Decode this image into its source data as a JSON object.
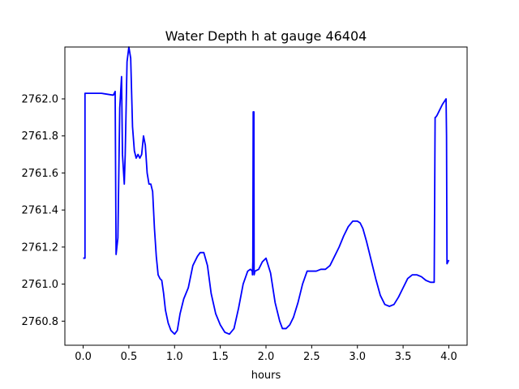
{
  "chart_data": {
    "type": "line",
    "title": "Water Depth h at gauge 46404",
    "xlabel": "hours",
    "ylabel": "",
    "xlim": [
      -0.2,
      4.2
    ],
    "ylim": [
      2760.67,
      2762.28
    ],
    "xticks": [
      0.0,
      0.5,
      1.0,
      1.5,
      2.0,
      2.5,
      3.0,
      3.5,
      4.0
    ],
    "xtick_labels": [
      "0.0",
      "0.5",
      "1.0",
      "1.5",
      "2.0",
      "2.5",
      "3.0",
      "3.5",
      "4.0"
    ],
    "yticks": [
      2760.8,
      2761.0,
      2761.2,
      2761.4,
      2761.6,
      2761.8,
      2762.0
    ],
    "ytick_labels": [
      "2760.8",
      "2761.0",
      "2761.2",
      "2761.4",
      "2761.6",
      "2761.8",
      "2762.0"
    ],
    "grid": false,
    "legend": "none",
    "series": [
      {
        "color": "#0000ff",
        "x": [
          0.0,
          0.02,
          0.02,
          0.2,
          0.33,
          0.35,
          0.36,
          0.38,
          0.4,
          0.42,
          0.43,
          0.45,
          0.46,
          0.48,
          0.5,
          0.52,
          0.54,
          0.56,
          0.58,
          0.6,
          0.62,
          0.64,
          0.66,
          0.68,
          0.7,
          0.72,
          0.74,
          0.76,
          0.78,
          0.8,
          0.82,
          0.84,
          0.86,
          0.88,
          0.9,
          0.93,
          0.96,
          1.0,
          1.03,
          1.06,
          1.1,
          1.15,
          1.2,
          1.25,
          1.28,
          1.32,
          1.36,
          1.4,
          1.45,
          1.5,
          1.55,
          1.6,
          1.65,
          1.7,
          1.75,
          1.8,
          1.83,
          1.85,
          1.852,
          1.856,
          1.86,
          1.864,
          1.868,
          1.87,
          1.88,
          1.92,
          1.96,
          2.0,
          2.05,
          2.1,
          2.15,
          2.18,
          2.22,
          2.26,
          2.3,
          2.35,
          2.4,
          2.45,
          2.5,
          2.55,
          2.6,
          2.65,
          2.7,
          2.75,
          2.8,
          2.85,
          2.9,
          2.95,
          3.0,
          3.03,
          3.06,
          3.1,
          3.15,
          3.2,
          3.25,
          3.3,
          3.35,
          3.4,
          3.45,
          3.5,
          3.55,
          3.6,
          3.65,
          3.7,
          3.75,
          3.8,
          3.84,
          3.85,
          3.855,
          3.87,
          3.9,
          3.93,
          3.97,
          3.975,
          3.98,
          4.0
        ],
        "y": [
          2761.14,
          2761.14,
          2762.03,
          2762.03,
          2762.02,
          2762.04,
          2761.16,
          2761.25,
          2761.95,
          2762.12,
          2761.7,
          2761.54,
          2761.7,
          2762.2,
          2762.28,
          2762.22,
          2761.85,
          2761.72,
          2761.68,
          2761.7,
          2761.68,
          2761.7,
          2761.8,
          2761.75,
          2761.6,
          2761.54,
          2761.54,
          2761.5,
          2761.3,
          2761.15,
          2761.05,
          2761.03,
          2761.02,
          2760.95,
          2760.86,
          2760.79,
          2760.75,
          2760.73,
          2760.75,
          2760.84,
          2760.92,
          2760.98,
          2761.1,
          2761.15,
          2761.17,
          2761.17,
          2761.1,
          2760.95,
          2760.84,
          2760.78,
          2760.74,
          2760.73,
          2760.76,
          2760.87,
          2761.0,
          2761.07,
          2761.08,
          2761.07,
          2761.05,
          2761.12,
          2761.93,
          2761.93,
          2761.93,
          2761.05,
          2761.07,
          2761.08,
          2761.12,
          2761.14,
          2761.06,
          2760.9,
          2760.8,
          2760.76,
          2760.76,
          2760.78,
          2760.82,
          2760.9,
          2761.0,
          2761.07,
          2761.07,
          2761.07,
          2761.08,
          2761.08,
          2761.1,
          2761.15,
          2761.2,
          2761.26,
          2761.31,
          2761.34,
          2761.34,
          2761.33,
          2761.3,
          2761.23,
          2761.13,
          2761.03,
          2760.94,
          2760.89,
          2760.88,
          2760.89,
          2760.93,
          2760.98,
          2761.03,
          2761.05,
          2761.05,
          2761.04,
          2761.02,
          2761.01,
          2761.01,
          2761.9,
          2761.9,
          2761.91,
          2761.94,
          2761.97,
          2762.0,
          2761.8,
          2761.11,
          2761.13
        ]
      }
    ]
  }
}
